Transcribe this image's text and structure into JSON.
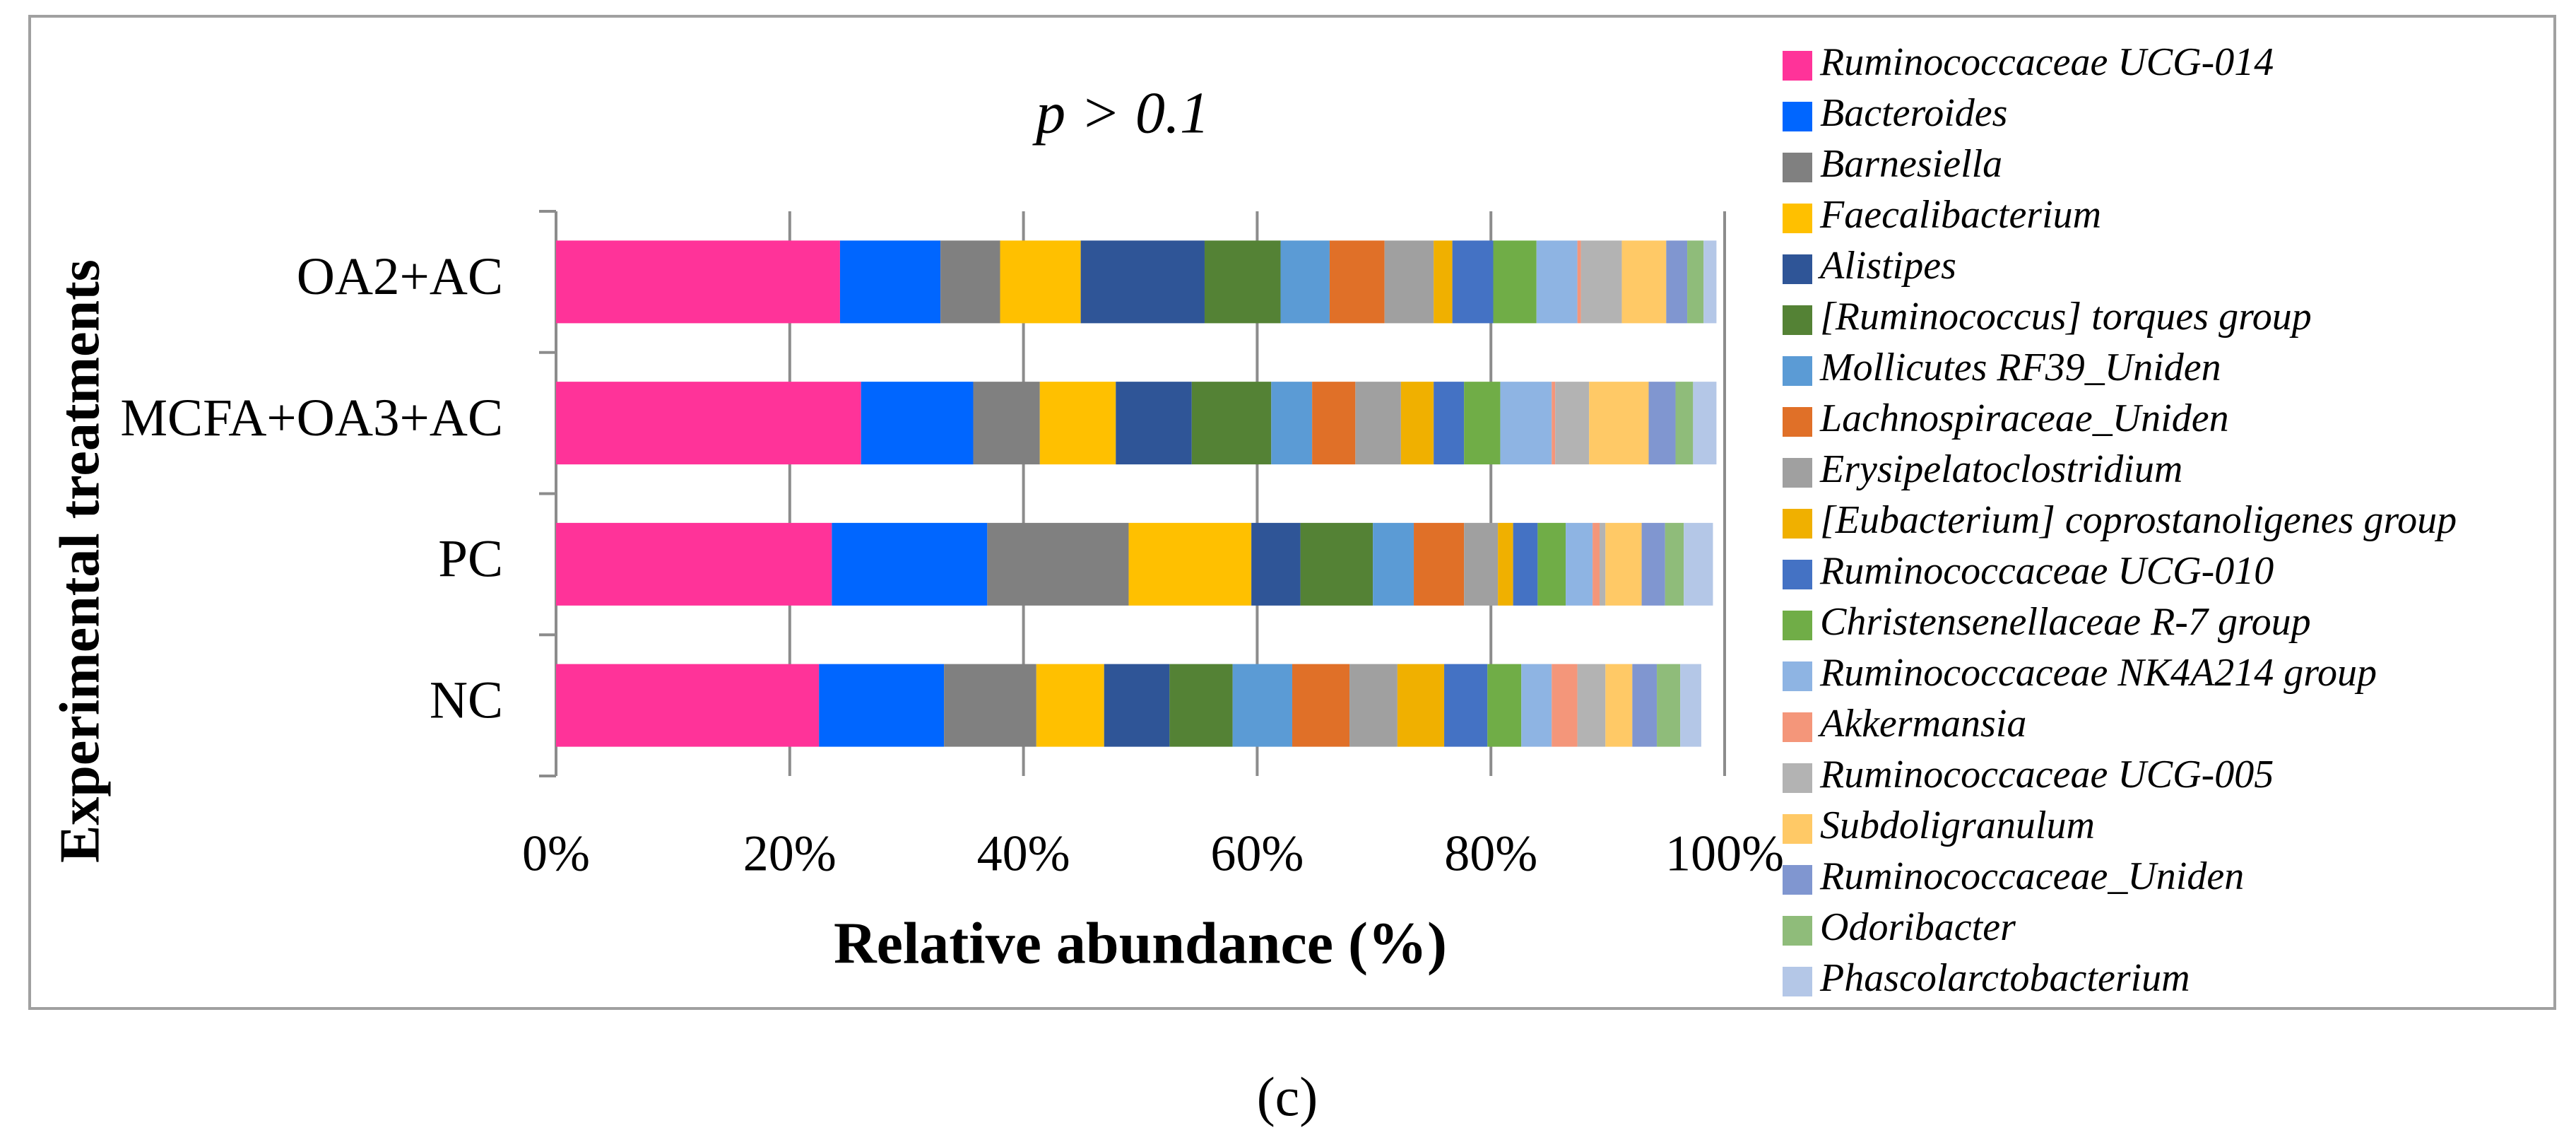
{
  "chart_data": {
    "type": "stacked-bar-horizontal",
    "title": "p > 0.1",
    "x_label": "Relative abundance (%)",
    "y_label": "Experimental treatments",
    "caption": "(c)",
    "categories": [
      "NC",
      "PC",
      "MCFA+OA3+AC",
      "OA2+AC"
    ],
    "xlim": [
      0,
      100
    ],
    "xticks": [
      {
        "value": 0,
        "label": "0%"
      },
      {
        "value": 20,
        "label": "20%"
      },
      {
        "value": 40,
        "label": "40%"
      },
      {
        "value": 60,
        "label": "60%"
      },
      {
        "value": 80,
        "label": "80%"
      },
      {
        "value": 100,
        "label": "100%"
      }
    ],
    "grid": true,
    "legend": "right",
    "series": [
      {
        "name": "Ruminococcaceae UCG-014",
        "color": "#ff3399",
        "values": [
          22.5,
          23.6,
          26.1,
          24.3
        ]
      },
      {
        "name": "Bacteroides",
        "color": "#0066ff",
        "values": [
          10.7,
          13.3,
          9.6,
          8.6
        ]
      },
      {
        "name": "Barnesiella",
        "color": "#808080",
        "values": [
          7.9,
          12.1,
          5.7,
          5.1
        ]
      },
      {
        "name": "Faecalibacterium",
        "color": "#ffc000",
        "values": [
          5.8,
          10.5,
          6.5,
          6.9
        ]
      },
      {
        "name": "Alistipes",
        "color": "#2f5597",
        "values": [
          5.6,
          4.2,
          6.5,
          10.6
        ]
      },
      {
        "name": "[Ruminococcus] torques group",
        "color": "#548235",
        "values": [
          5.4,
          6.2,
          6.8,
          6.5
        ]
      },
      {
        "name": "Mollicutes RF39_Uniden",
        "color": "#5b9bd5",
        "values": [
          5.1,
          3.5,
          3.5,
          4.2
        ]
      },
      {
        "name": "Lachnospiraceae_Uniden",
        "color": "#e07028",
        "values": [
          4.9,
          4.3,
          3.7,
          4.7
        ]
      },
      {
        "name": "Erysipelatoclostridium",
        "color": "#a0a0a0",
        "values": [
          4.1,
          2.9,
          3.9,
          4.2
        ]
      },
      {
        "name": "[Eubacterium] coprostanoligenes group",
        "color": "#f0b000",
        "values": [
          4.0,
          1.3,
          2.8,
          1.6
        ]
      },
      {
        "name": "Ruminococcaceae UCG-010",
        "color": "#4472c4",
        "values": [
          3.7,
          2.1,
          2.6,
          3.5
        ]
      },
      {
        "name": "Christensenellaceae R-7 group",
        "color": "#70ad47",
        "values": [
          2.9,
          2.4,
          3.1,
          3.7
        ]
      },
      {
        "name": "Ruminococcaceae NK4A214 group",
        "color": "#8eb4e3",
        "values": [
          2.6,
          2.3,
          4.4,
          3.5
        ]
      },
      {
        "name": "Akkermansia",
        "color": "#f4967a",
        "values": [
          2.2,
          0.6,
          0.3,
          0.3
        ]
      },
      {
        "name": "Ruminococcaceae UCG-005",
        "color": "#b3b3b3",
        "values": [
          2.4,
          0.5,
          2.9,
          3.5
        ]
      },
      {
        "name": "Subdoligranulum",
        "color": "#ffc966",
        "values": [
          2.3,
          3.1,
          5.1,
          3.8
        ]
      },
      {
        "name": "Ruminococcaceae_Uniden",
        "color": "#8096d0",
        "values": [
          2.1,
          2.0,
          2.3,
          1.8
        ]
      },
      {
        "name": "Odoribacter",
        "color": "#8fbc7a",
        "values": [
          2.0,
          1.6,
          1.5,
          1.4
        ]
      },
      {
        "name": "Phascolarctobacterium",
        "color": "#b4c7e7",
        "values": [
          1.8,
          2.5,
          2.0,
          1.1
        ]
      }
    ]
  }
}
